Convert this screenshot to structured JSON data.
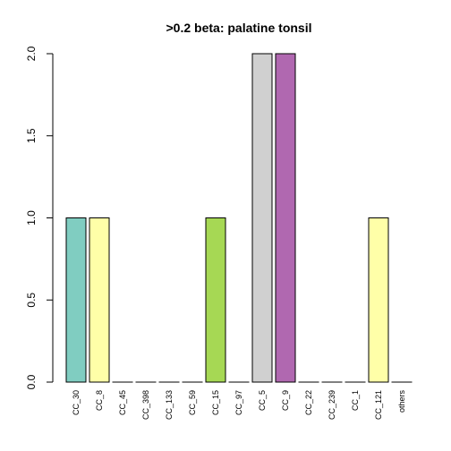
{
  "chart_data": {
    "type": "bar",
    "title": ">0.2 beta:  palatine tonsil",
    "xlabel": "",
    "ylabel": "",
    "ylim": [
      0,
      2.0
    ],
    "yticks": [
      "0.0",
      "0.5",
      "1.0",
      "1.5",
      "2.0"
    ],
    "grid": false,
    "categories": [
      "CC_30",
      "CC_8",
      "CC_45",
      "CC_398",
      "CC_133",
      "CC_59",
      "CC_15",
      "CC_97",
      "CC_5",
      "CC_9",
      "CC_22",
      "CC_239",
      "CC_1",
      "CC_121",
      "others"
    ],
    "values": [
      1,
      1,
      0,
      0,
      0,
      0,
      1,
      0,
      2,
      2,
      0,
      0,
      0,
      1,
      0
    ],
    "colors": [
      "#80CDC1",
      "#FFFFA8",
      "#FFFFFF",
      "#FFFFFF",
      "#FFFFFF",
      "#FFFFFF",
      "#A6D854",
      "#FFFFFF",
      "#D0D0D0",
      "#B068B0",
      "#FFFFFF",
      "#FFFFFF",
      "#FFFFFF",
      "#FFFFA8",
      "#FFFFFF"
    ]
  }
}
